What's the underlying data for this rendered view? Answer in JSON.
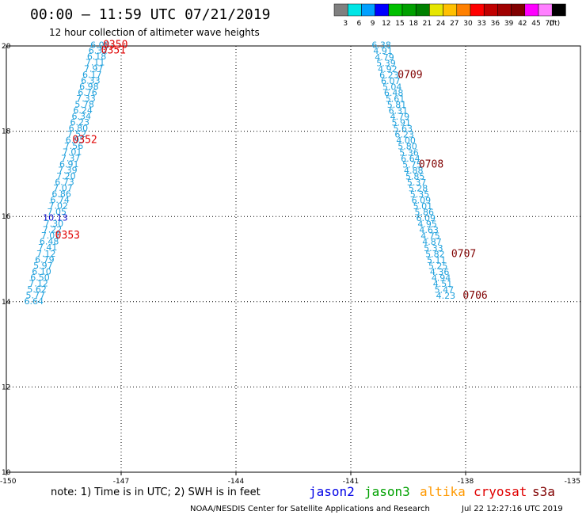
{
  "header": {
    "title": "00:00 – 11:59 UTC 07/21/2019",
    "subtitle": "12 hour collection of altimeter wave heights"
  },
  "colorbar": {
    "colors": [
      "#808080",
      "#00e6e6",
      "#00a0ff",
      "#0000ff",
      "#00c000",
      "#00a000",
      "#008000",
      "#e6e600",
      "#ffc000",
      "#ff8000",
      "#ff0000",
      "#c00000",
      "#a00000",
      "#800000",
      "#ff00ff",
      "#ff80ff",
      "#000000"
    ],
    "ticks": [
      "3",
      "6",
      "9",
      "12",
      "15",
      "18",
      "21",
      "24",
      "27",
      "30",
      "33",
      "36",
      "39",
      "42",
      "45",
      "70",
      "(ft)"
    ]
  },
  "chart_data": {
    "type": "scatter",
    "title": "00:00 – 11:59 UTC 07/21/2019",
    "xlim": [
      -150,
      -135
    ],
    "ylim": [
      10,
      20
    ],
    "x_ticks": [
      "-150",
      "-147",
      "-144",
      "-141",
      "-138",
      "-135"
    ],
    "y_ticks": [
      "20",
      "18",
      "16",
      "14",
      "12",
      "10"
    ],
    "grid": true,
    "series": [
      {
        "name": "cryosat",
        "points": [
          {
            "x": -147.55,
            "y": 19.95,
            "label": "6.08",
            "color": "#1ea0dc"
          },
          {
            "x": -147.6,
            "y": 19.82,
            "label": "6.32",
            "color": "#1ea0dc"
          },
          {
            "x": -147.64,
            "y": 19.68,
            "label": "6.18",
            "color": "#1ea0dc"
          },
          {
            "x": -147.68,
            "y": 19.54,
            "label": "7.11",
            "color": "#1ea0dc"
          },
          {
            "x": -147.72,
            "y": 19.4,
            "label": "7.97",
            "color": "#1ea0dc"
          },
          {
            "x": -147.76,
            "y": 19.26,
            "label": "6.17",
            "color": "#1ea0dc"
          },
          {
            "x": -147.8,
            "y": 19.12,
            "label": "6.33",
            "color": "#1ea0dc"
          },
          {
            "x": -147.84,
            "y": 18.98,
            "label": "6.98",
            "color": "#1ea0dc"
          },
          {
            "x": -147.88,
            "y": 18.84,
            "label": "6.76",
            "color": "#1ea0dc"
          },
          {
            "x": -147.92,
            "y": 18.7,
            "label": "7.33",
            "color": "#1ea0dc"
          },
          {
            "x": -147.96,
            "y": 18.56,
            "label": "5.78",
            "color": "#1ea0dc"
          },
          {
            "x": -148.0,
            "y": 18.42,
            "label": "6.24",
            "color": "#1ea0dc"
          },
          {
            "x": -148.04,
            "y": 18.28,
            "label": "6.34",
            "color": "#1ea0dc"
          },
          {
            "x": -148.08,
            "y": 18.14,
            "label": "6.23",
            "color": "#1ea0dc"
          },
          {
            "x": -148.12,
            "y": 18.0,
            "label": "6.80",
            "color": "#1ea0dc"
          },
          {
            "x": -148.16,
            "y": 17.86,
            "label": "7.52",
            "color": "#1ea0dc"
          },
          {
            "x": -148.2,
            "y": 17.72,
            "label": "6.95",
            "color": "#1ea0dc"
          },
          {
            "x": -148.24,
            "y": 17.58,
            "label": "7.56",
            "color": "#1ea0dc"
          },
          {
            "x": -148.28,
            "y": 17.44,
            "label": "7.01",
            "color": "#1ea0dc"
          },
          {
            "x": -148.32,
            "y": 17.3,
            "label": "7.37",
            "color": "#1ea0dc"
          },
          {
            "x": -148.36,
            "y": 17.16,
            "label": "6.91",
            "color": "#1ea0dc"
          },
          {
            "x": -148.4,
            "y": 17.02,
            "label": "7.39",
            "color": "#1ea0dc"
          },
          {
            "x": -148.44,
            "y": 16.88,
            "label": "7.20",
            "color": "#1ea0dc"
          },
          {
            "x": -148.48,
            "y": 16.74,
            "label": "6.73",
            "color": "#1ea0dc"
          },
          {
            "x": -148.52,
            "y": 16.6,
            "label": "7.07",
            "color": "#1ea0dc"
          },
          {
            "x": -148.56,
            "y": 16.46,
            "label": "6.86",
            "color": "#1ea0dc"
          },
          {
            "x": -148.6,
            "y": 16.32,
            "label": "6.74",
            "color": "#1ea0dc"
          },
          {
            "x": -148.64,
            "y": 16.18,
            "label": "7.02",
            "color": "#1ea0dc"
          },
          {
            "x": -148.68,
            "y": 16.04,
            "label": "7.05",
            "color": "#1ea0dc"
          },
          {
            "x": -148.72,
            "y": 15.9,
            "label": "10.13",
            "color": "#0000c8"
          },
          {
            "x": -148.76,
            "y": 15.76,
            "label": "7.30",
            "color": "#1ea0dc"
          },
          {
            "x": -148.8,
            "y": 15.62,
            "label": "7.22",
            "color": "#1ea0dc"
          },
          {
            "x": -148.84,
            "y": 15.48,
            "label": "7.01",
            "color": "#1ea0dc"
          },
          {
            "x": -148.88,
            "y": 15.34,
            "label": "6.48",
            "color": "#1ea0dc"
          },
          {
            "x": -148.92,
            "y": 15.2,
            "label": "7.41",
            "color": "#1ea0dc"
          },
          {
            "x": -148.96,
            "y": 15.06,
            "label": "7.12",
            "color": "#1ea0dc"
          },
          {
            "x": -149.0,
            "y": 14.92,
            "label": "6.79",
            "color": "#1ea0dc"
          },
          {
            "x": -149.04,
            "y": 14.78,
            "label": "5.97",
            "color": "#1ea0dc"
          },
          {
            "x": -149.08,
            "y": 14.64,
            "label": "6.10",
            "color": "#1ea0dc"
          },
          {
            "x": -149.12,
            "y": 14.5,
            "label": "6.50",
            "color": "#1ea0dc"
          },
          {
            "x": -149.16,
            "y": 14.36,
            "label": "7.12",
            "color": "#1ea0dc"
          },
          {
            "x": -149.2,
            "y": 14.22,
            "label": "5.62",
            "color": "#1ea0dc"
          },
          {
            "x": -149.24,
            "y": 14.08,
            "label": "5.77",
            "color": "#1ea0dc"
          },
          {
            "x": -149.28,
            "y": 13.94,
            "label": "6.64",
            "color": "#1ea0dc"
          }
        ]
      },
      {
        "name": "s3a",
        "points": [
          {
            "x": -140.2,
            "y": 19.95,
            "label": "6.38",
            "color": "#1ea0dc"
          },
          {
            "x": -140.16,
            "y": 19.81,
            "label": "4.91",
            "color": "#1ea0dc"
          },
          {
            "x": -140.12,
            "y": 19.67,
            "label": "4.79",
            "color": "#1ea0dc"
          },
          {
            "x": -140.08,
            "y": 19.53,
            "label": "5.39",
            "color": "#1ea0dc"
          },
          {
            "x": -140.04,
            "y": 19.39,
            "label": "4.92",
            "color": "#1ea0dc"
          },
          {
            "x": -140.0,
            "y": 19.25,
            "label": "6.23",
            "color": "#1ea0dc"
          },
          {
            "x": -139.96,
            "y": 19.11,
            "label": "6.07",
            "color": "#1ea0dc"
          },
          {
            "x": -139.92,
            "y": 18.97,
            "label": "5.04",
            "color": "#1ea0dc"
          },
          {
            "x": -139.88,
            "y": 18.83,
            "label": "6.48",
            "color": "#1ea0dc"
          },
          {
            "x": -139.84,
            "y": 18.69,
            "label": "5.61",
            "color": "#1ea0dc"
          },
          {
            "x": -139.8,
            "y": 18.55,
            "label": "5.81",
            "color": "#1ea0dc"
          },
          {
            "x": -139.76,
            "y": 18.41,
            "label": "6.31",
            "color": "#1ea0dc"
          },
          {
            "x": -139.72,
            "y": 18.27,
            "label": "4.79",
            "color": "#1ea0dc"
          },
          {
            "x": -139.68,
            "y": 18.13,
            "label": "5.91",
            "color": "#1ea0dc"
          },
          {
            "x": -139.64,
            "y": 17.99,
            "label": "5.63",
            "color": "#1ea0dc"
          },
          {
            "x": -139.6,
            "y": 17.85,
            "label": "6.23",
            "color": "#1ea0dc"
          },
          {
            "x": -139.56,
            "y": 17.71,
            "label": "4.00",
            "color": "#1ea0dc"
          },
          {
            "x": -139.52,
            "y": 17.57,
            "label": "5.80",
            "color": "#1ea0dc"
          },
          {
            "x": -139.48,
            "y": 17.43,
            "label": "5.36",
            "color": "#1ea0dc"
          },
          {
            "x": -139.44,
            "y": 17.29,
            "label": "6.64",
            "color": "#1ea0dc"
          },
          {
            "x": -139.4,
            "y": 17.15,
            "label": "5.75",
            "color": "#1ea0dc"
          },
          {
            "x": -139.36,
            "y": 17.01,
            "label": "4.88",
            "color": "#1ea0dc"
          },
          {
            "x": -139.32,
            "y": 16.87,
            "label": "5.85",
            "color": "#1ea0dc"
          },
          {
            "x": -139.28,
            "y": 16.73,
            "label": "5.37",
            "color": "#1ea0dc"
          },
          {
            "x": -139.24,
            "y": 16.59,
            "label": "5.28",
            "color": "#1ea0dc"
          },
          {
            "x": -139.2,
            "y": 16.45,
            "label": "5.35",
            "color": "#1ea0dc"
          },
          {
            "x": -139.16,
            "y": 16.31,
            "label": "6.09",
            "color": "#1ea0dc"
          },
          {
            "x": -139.12,
            "y": 16.17,
            "label": "5.01",
            "color": "#1ea0dc"
          },
          {
            "x": -139.08,
            "y": 16.03,
            "label": "5.86",
            "color": "#1ea0dc"
          },
          {
            "x": -139.04,
            "y": 15.89,
            "label": "6.09",
            "color": "#1ea0dc"
          },
          {
            "x": -139.0,
            "y": 15.75,
            "label": "4.95",
            "color": "#1ea0dc"
          },
          {
            "x": -138.96,
            "y": 15.61,
            "label": "4.63",
            "color": "#1ea0dc"
          },
          {
            "x": -138.92,
            "y": 15.47,
            "label": "4.75",
            "color": "#1ea0dc"
          },
          {
            "x": -138.88,
            "y": 15.33,
            "label": "4.87",
            "color": "#1ea0dc"
          },
          {
            "x": -138.84,
            "y": 15.19,
            "label": "5.33",
            "color": "#1ea0dc"
          },
          {
            "x": -138.8,
            "y": 15.05,
            "label": "5.82",
            "color": "#1ea0dc"
          },
          {
            "x": -138.76,
            "y": 14.91,
            "label": "5.11",
            "color": "#1ea0dc"
          },
          {
            "x": -138.72,
            "y": 14.77,
            "label": "5.25",
            "color": "#1ea0dc"
          },
          {
            "x": -138.68,
            "y": 14.63,
            "label": "4.36",
            "color": "#1ea0dc"
          },
          {
            "x": -138.64,
            "y": 14.49,
            "label": "4.94",
            "color": "#1ea0dc"
          },
          {
            "x": -138.6,
            "y": 14.35,
            "label": "4.51",
            "color": "#1ea0dc"
          },
          {
            "x": -138.56,
            "y": 14.21,
            "label": "5.47",
            "color": "#1ea0dc"
          },
          {
            "x": -138.52,
            "y": 14.07,
            "label": "4.23",
            "color": "#1ea0dc"
          }
        ]
      }
    ],
    "time_labels": [
      {
        "x": -147.15,
        "y": 19.95,
        "label": "0350",
        "color": "#e00000"
      },
      {
        "x": -147.2,
        "y": 19.82,
        "label": "0351",
        "color": "#e00000"
      },
      {
        "x": -147.95,
        "y": 17.72,
        "label": "0352",
        "color": "#e00000"
      },
      {
        "x": -148.4,
        "y": 15.48,
        "label": "0353",
        "color": "#e00000"
      },
      {
        "x": -139.45,
        "y": 19.25,
        "label": "0709",
        "color": "#800000"
      },
      {
        "x": -138.9,
        "y": 17.15,
        "label": "0708",
        "color": "#800000"
      },
      {
        "x": -138.05,
        "y": 15.05,
        "label": "0707",
        "color": "#800000"
      },
      {
        "x": -137.75,
        "y": 14.07,
        "label": "0706",
        "color": "#800000"
      }
    ]
  },
  "legend": {
    "note": "note:  1) Time is in UTC;  2) SWH is in feet",
    "satellites": [
      {
        "label": "jason2",
        "color": "#0000e6"
      },
      {
        "label": "jason3",
        "color": "#00a000"
      },
      {
        "label": "altika",
        "color": "#ff9900"
      },
      {
        "label": "cryosat",
        "color": "#e00000"
      },
      {
        "label": "s3a",
        "color": "#800000"
      }
    ]
  },
  "footer": {
    "credit": "NOAA/NESDIS Center for Satellite Applications and Research",
    "timestamp": "Jul 22 12:27:16 UTC 2019"
  }
}
